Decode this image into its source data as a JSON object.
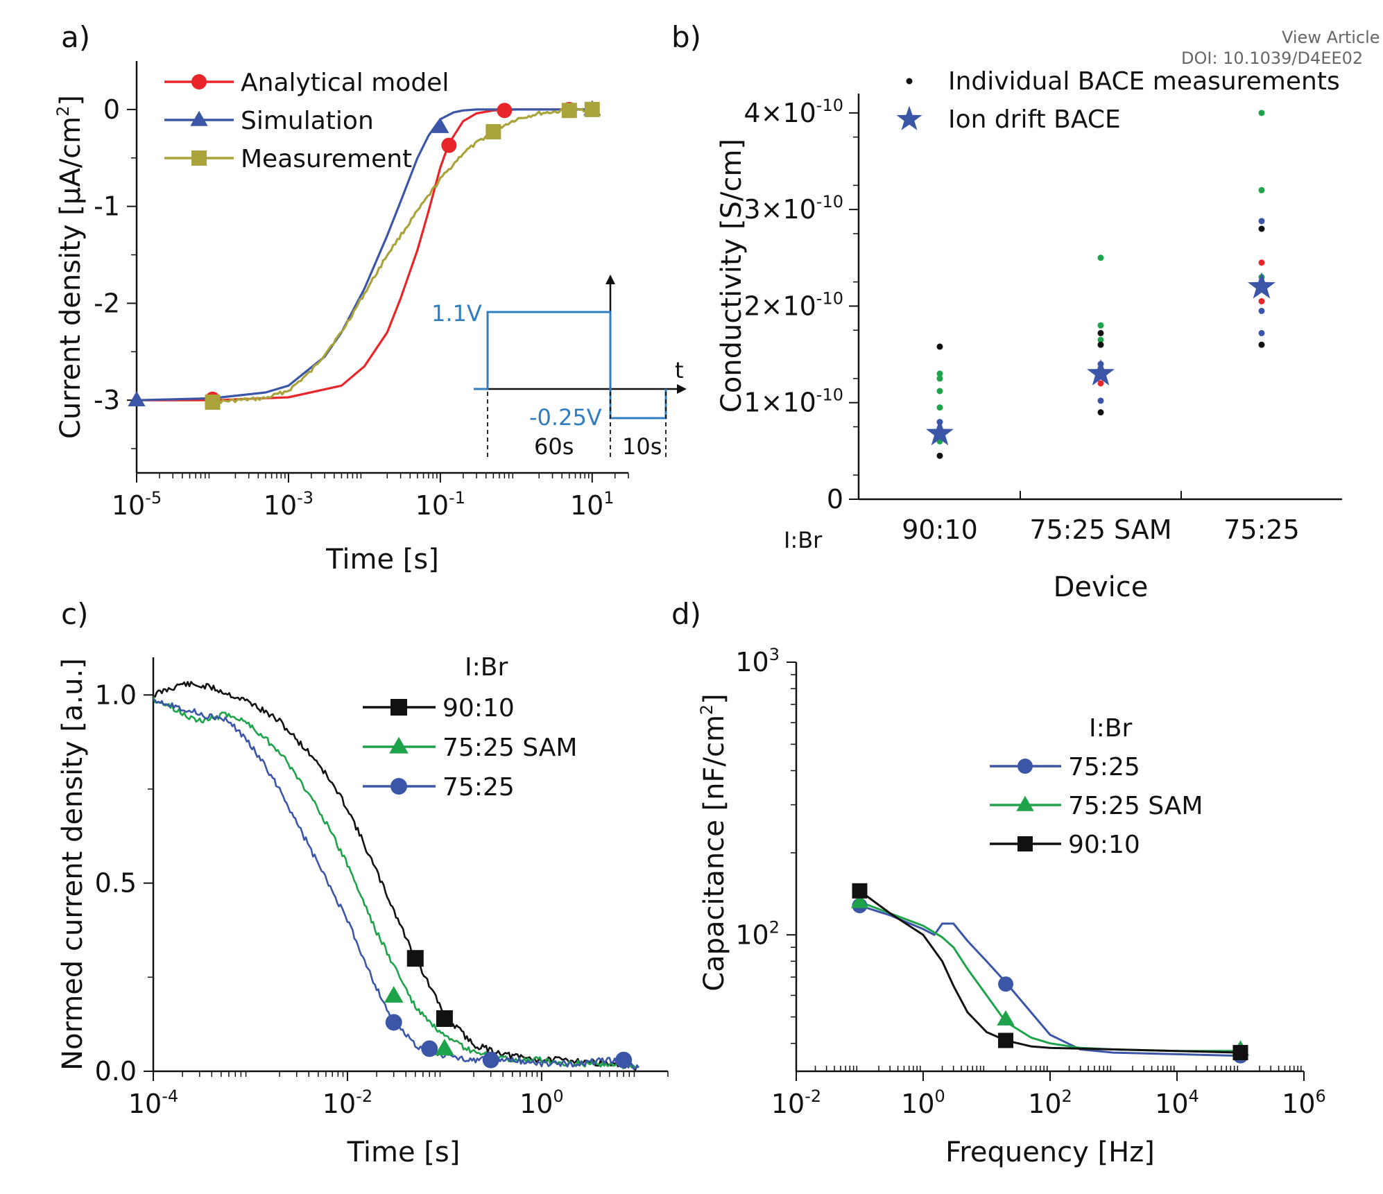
{
  "watermark": {
    "line1": "View Article C",
    "line2": "DOI: 10.1039/D4EE02"
  },
  "colors": {
    "red": "#e8262a",
    "blue": "#3b56a7",
    "olive": "#aaa23a",
    "green": "#1ea34a",
    "black": "#111111",
    "inset": "#2f7dbf"
  },
  "panel_labels": [
    "a)",
    "b)",
    "c)",
    "d)"
  ],
  "chart_data": [
    {
      "panel": "a)",
      "type": "line",
      "xscale": "log",
      "xlim": [
        1e-05,
        30
      ],
      "ylim": [
        -3.75,
        0.5
      ],
      "xlabel": "Time [s]",
      "ylabel_pre": "Current density [µA/cm",
      "ylabel_sup": "2",
      "ylabel_post": "]",
      "xticks": [
        {
          "base": "10",
          "exp": "-5",
          "v": 1e-05
        },
        {
          "base": "10",
          "exp": "-3",
          "v": 0.001
        },
        {
          "base": "10",
          "exp": "-1",
          "v": 0.1
        },
        {
          "base": "10",
          "exp": "1",
          "v": 10
        }
      ],
      "yticks": [
        {
          "label": "0",
          "v": 0
        },
        {
          "label": "-1",
          "v": -1
        },
        {
          "label": "-2",
          "v": -2
        },
        {
          "label": "-3",
          "v": -3
        }
      ],
      "series": [
        {
          "name": "Analytical model",
          "color": "#e8262a",
          "marker": "circle",
          "x": [
            1e-05,
            0.0001,
            0.001,
            0.005,
            0.01,
            0.02,
            0.03,
            0.05,
            0.07,
            0.1,
            0.13,
            0.2,
            0.3,
            0.5,
            1,
            2,
            5,
            10
          ],
          "y": [
            -3.0,
            -3.0,
            -2.97,
            -2.85,
            -2.65,
            -2.3,
            -1.95,
            -1.45,
            -1.05,
            -0.6,
            -0.35,
            -0.12,
            -0.04,
            -0.01,
            0,
            0,
            0,
            0
          ],
          "mx": [
            0.0001,
            0.13,
            0.7,
            5
          ],
          "my": [
            -2.99,
            -0.37,
            -0.01,
            0
          ]
        },
        {
          "name": "Simulation",
          "color": "#3b56a7",
          "marker": "triangle",
          "x": [
            1e-05,
            0.0001,
            0.0005,
            0.001,
            0.003,
            0.005,
            0.01,
            0.02,
            0.03,
            0.05,
            0.07,
            0.1,
            0.15,
            0.2,
            0.3,
            1,
            10
          ],
          "y": [
            -3.0,
            -2.98,
            -2.92,
            -2.85,
            -2.55,
            -2.3,
            -1.85,
            -1.3,
            -0.95,
            -0.5,
            -0.27,
            -0.1,
            -0.03,
            -0.01,
            0,
            0,
            0
          ],
          "mx": [
            1e-05,
            0.1,
            10
          ],
          "my": [
            -3.0,
            -0.18,
            0
          ]
        },
        {
          "name": "Measurement",
          "color": "#aaa23a",
          "marker": "square",
          "x": [
            0.0001,
            0.0005,
            0.001,
            0.002,
            0.005,
            0.01,
            0.02,
            0.05,
            0.1,
            0.2,
            0.5,
            1,
            2,
            5,
            10
          ],
          "y": [
            -3.02,
            -2.98,
            -2.9,
            -2.7,
            -2.3,
            -1.9,
            -1.5,
            -1.05,
            -0.72,
            -0.45,
            -0.22,
            -0.1,
            -0.04,
            -0.01,
            0
          ],
          "mx": [
            0.0001,
            0.5,
            5,
            10
          ],
          "my": [
            -3.02,
            -0.23,
            -0.01,
            0
          ]
        }
      ],
      "inset": {
        "v_on": "1.1V",
        "v_off": "-0.25V",
        "t_on": "60s",
        "t_off": "10s",
        "axis": "t"
      }
    },
    {
      "panel": "b)",
      "type": "scatter",
      "categories": [
        "90:10",
        "75:25 SAM",
        "75:25"
      ],
      "cat_prefix": "I:Br",
      "xlabel": "Device",
      "ylabel": "Conductivity [S/cm]",
      "ylim": [
        0,
        4.2e-10
      ],
      "yticks": [
        {
          "base": "0",
          "exp": "",
          "v": 0
        },
        {
          "base": "1×10",
          "exp": "-10",
          "v": 1e-10
        },
        {
          "base": "2×10",
          "exp": "-10",
          "v": 2e-10
        },
        {
          "base": "3×10",
          "exp": "-10",
          "v": 3e-10
        },
        {
          "base": "4×10",
          "exp": "-10",
          "v": 4e-10
        }
      ],
      "series": [
        {
          "name": "Individual BACE measurements",
          "marker": "dot",
          "points": [
            {
              "cat": 0,
              "y": 1.58e-10,
              "color": "#111111"
            },
            {
              "cat": 0,
              "y": 1.3e-10,
              "color": "#1ea34a"
            },
            {
              "cat": 0,
              "y": 1.25e-10,
              "color": "#1ea34a"
            },
            {
              "cat": 0,
              "y": 1.12e-10,
              "color": "#1ea34a"
            },
            {
              "cat": 0,
              "y": 9.5e-11,
              "color": "#1ea34a"
            },
            {
              "cat": 0,
              "y": 8e-11,
              "color": "#3b56a7"
            },
            {
              "cat": 0,
              "y": 6e-11,
              "color": "#1ea34a"
            },
            {
              "cat": 0,
              "y": 4.5e-11,
              "color": "#111111"
            },
            {
              "cat": 1,
              "y": 2.5e-10,
              "color": "#1ea34a"
            },
            {
              "cat": 1,
              "y": 1.8e-10,
              "color": "#1ea34a"
            },
            {
              "cat": 1,
              "y": 1.72e-10,
              "color": "#111111"
            },
            {
              "cat": 1,
              "y": 1.65e-10,
              "color": "#1ea34a"
            },
            {
              "cat": 1,
              "y": 1.6e-10,
              "color": "#111111"
            },
            {
              "cat": 1,
              "y": 1.4e-10,
              "color": "#3b56a7"
            },
            {
              "cat": 1,
              "y": 1.3e-10,
              "color": "#e8262a"
            },
            {
              "cat": 1,
              "y": 1.2e-10,
              "color": "#e8262a"
            },
            {
              "cat": 1,
              "y": 1.02e-10,
              "color": "#3b56a7"
            },
            {
              "cat": 1,
              "y": 9e-11,
              "color": "#111111"
            },
            {
              "cat": 2,
              "y": 4e-10,
              "color": "#1ea34a"
            },
            {
              "cat": 2,
              "y": 3.2e-10,
              "color": "#1ea34a"
            },
            {
              "cat": 2,
              "y": 2.88e-10,
              "color": "#3b56a7"
            },
            {
              "cat": 2,
              "y": 2.8e-10,
              "color": "#111111"
            },
            {
              "cat": 2,
              "y": 2.45e-10,
              "color": "#e8262a"
            },
            {
              "cat": 2,
              "y": 2.3e-10,
              "color": "#1ea34a"
            },
            {
              "cat": 2,
              "y": 2.05e-10,
              "color": "#e8262a"
            },
            {
              "cat": 2,
              "y": 1.95e-10,
              "color": "#3b56a7"
            },
            {
              "cat": 2,
              "y": 1.72e-10,
              "color": "#3b56a7"
            },
            {
              "cat": 2,
              "y": 1.6e-10,
              "color": "#111111"
            }
          ]
        },
        {
          "name": "Ion drift BACE",
          "marker": "star",
          "color": "#3b56a7",
          "points": [
            {
              "cat": 0,
              "y": 6.8e-11
            },
            {
              "cat": 1,
              "y": 1.3e-10
            },
            {
              "cat": 2,
              "y": 2.2e-10
            }
          ]
        }
      ]
    },
    {
      "panel": "c)",
      "type": "line",
      "xscale": "log",
      "xlim": [
        0.0001,
        20
      ],
      "ylim": [
        0,
        1.1
      ],
      "xlabel": "Time [s]",
      "ylabel": "Normed current density [a.u.]",
      "legend_title": "I:Br",
      "xticks": [
        {
          "base": "10",
          "exp": "-4",
          "v": 0.0001
        },
        {
          "base": "10",
          "exp": "-2",
          "v": 0.01
        },
        {
          "base": "10",
          "exp": "0",
          "v": 1
        }
      ],
      "yticks": [
        {
          "label": "0.0",
          "v": 0
        },
        {
          "label": "0.5",
          "v": 0.5
        },
        {
          "label": "1.0",
          "v": 1.0
        }
      ],
      "series": [
        {
          "name": "90:10",
          "color": "#111111",
          "marker": "square",
          "x": [
            0.0001,
            0.0002,
            0.0004,
            0.001,
            0.002,
            0.005,
            0.01,
            0.02,
            0.05,
            0.1,
            0.2,
            0.5,
            1,
            2,
            5,
            10
          ],
          "y": [
            1.0,
            1.03,
            1.02,
            0.98,
            0.93,
            0.82,
            0.7,
            0.53,
            0.3,
            0.15,
            0.07,
            0.04,
            0.03,
            0.03,
            0.02,
            0.01
          ],
          "mx": [
            0.05,
            0.1
          ],
          "my": [
            0.3,
            0.14
          ]
        },
        {
          "name": "75:25 SAM",
          "color": "#1ea34a",
          "marker": "triangle",
          "x": [
            0.0001,
            0.0003,
            0.0006,
            0.001,
            0.002,
            0.005,
            0.01,
            0.02,
            0.05,
            0.1,
            0.2,
            0.5,
            1,
            2,
            5,
            10
          ],
          "y": [
            0.99,
            0.93,
            0.95,
            0.92,
            0.85,
            0.7,
            0.55,
            0.37,
            0.17,
            0.09,
            0.05,
            0.03,
            0.03,
            0.02,
            0.02,
            0.01
          ],
          "mx": [
            0.03,
            0.1
          ],
          "my": [
            0.2,
            0.06
          ]
        },
        {
          "name": "75:25",
          "color": "#3b56a7",
          "marker": "circle",
          "x": [
            0.0001,
            0.0003,
            0.0006,
            0.001,
            0.002,
            0.005,
            0.01,
            0.02,
            0.03,
            0.05,
            0.1,
            0.2,
            0.5,
            1,
            2,
            5,
            10
          ],
          "y": [
            0.99,
            0.95,
            0.93,
            0.87,
            0.75,
            0.55,
            0.4,
            0.22,
            0.13,
            0.07,
            0.04,
            0.03,
            0.03,
            0.02,
            0.02,
            0.03,
            0.01
          ],
          "mx": [
            0.03,
            0.07,
            0.3,
            7
          ],
          "my": [
            0.13,
            0.06,
            0.03,
            0.03
          ]
        }
      ]
    },
    {
      "panel": "d)",
      "type": "line",
      "xscale": "log",
      "yscale": "log",
      "xlim": [
        0.01,
        1000000
      ],
      "ylim": [
        31.6,
        1000
      ],
      "xlabel": "Frequency [Hz]",
      "ylabel_pre": "Capacitance [nF/cm",
      "ylabel_sup": "2",
      "ylabel_post": "]",
      "legend_title": "I:Br",
      "xticks": [
        {
          "base": "10",
          "exp": "-2",
          "v": 0.01
        },
        {
          "base": "10",
          "exp": "0",
          "v": 1
        },
        {
          "base": "10",
          "exp": "2",
          "v": 100
        },
        {
          "base": "10",
          "exp": "4",
          "v": 10000
        },
        {
          "base": "10",
          "exp": "6",
          "v": 1000000
        }
      ],
      "yticks": [
        {
          "base": "10",
          "exp": "2",
          "v": 100
        },
        {
          "base": "10",
          "exp": "3",
          "v": 1000
        }
      ],
      "series": [
        {
          "name": "75:25",
          "color": "#3b56a7",
          "marker": "circle",
          "x": [
            0.1,
            0.3,
            1,
            1.5,
            2,
            3,
            5,
            10,
            20,
            50,
            100,
            300,
            1000,
            10000,
            100000
          ],
          "y": [
            128,
            118,
            105,
            100,
            110,
            110,
            95,
            80,
            67,
            52,
            43,
            38,
            37,
            36.5,
            36
          ],
          "mx": [
            0.1,
            20,
            100000
          ],
          "my": [
            128,
            66,
            36
          ]
        },
        {
          "name": "75:25 SAM",
          "color": "#1ea34a",
          "marker": "triangle",
          "x": [
            0.1,
            0.3,
            1,
            2,
            3,
            5,
            10,
            20,
            50,
            100,
            300,
            1000,
            10000,
            100000
          ],
          "y": [
            132,
            120,
            108,
            98,
            90,
            75,
            60,
            48,
            42,
            40,
            38.5,
            38,
            37.5,
            37.5
          ],
          "mx": [
            0.1,
            20,
            100000
          ],
          "my": [
            132,
            49,
            38
          ]
        },
        {
          "name": "90:10",
          "color": "#111111",
          "marker": "square",
          "x": [
            0.1,
            0.3,
            1,
            2,
            3,
            5,
            10,
            20,
            50,
            100,
            1000,
            10000,
            100000
          ],
          "y": [
            145,
            120,
            100,
            80,
            65,
            52,
            44,
            41,
            39,
            38.5,
            38,
            37.5,
            37
          ],
          "mx": [
            0.1,
            20,
            100000
          ],
          "my": [
            145,
            41,
            37
          ]
        }
      ]
    }
  ]
}
